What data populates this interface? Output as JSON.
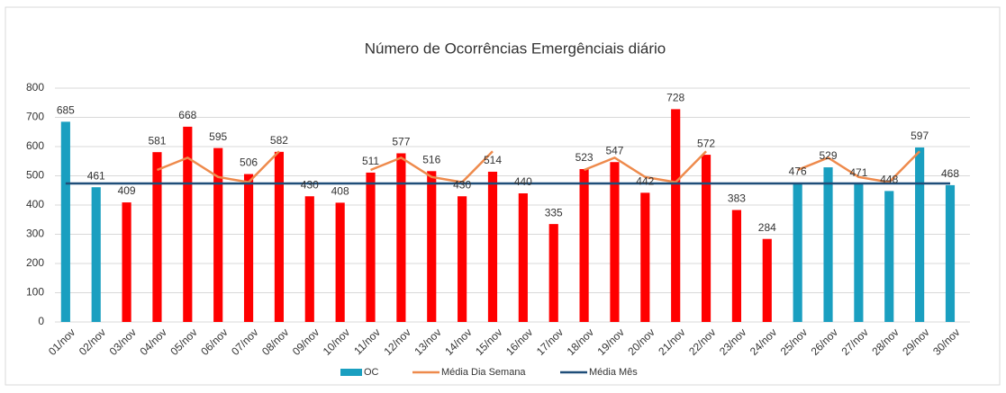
{
  "chart_data": {
    "type": "bar",
    "title": "Número de Ocorrências Emergênciais diário",
    "categories": [
      "01/nov",
      "02/nov",
      "03/nov",
      "04/nov",
      "05/nov",
      "06/nov",
      "07/nov",
      "08/nov",
      "09/nov",
      "10/nov",
      "11/nov",
      "12/nov",
      "13/nov",
      "14/nov",
      "15/nov",
      "16/nov",
      "17/nov",
      "18/nov",
      "19/nov",
      "20/nov",
      "21/nov",
      "22/nov",
      "23/nov",
      "24/nov",
      "25/nov",
      "26/nov",
      "27/nov",
      "28/nov",
      "29/nov",
      "30/nov"
    ],
    "series": [
      {
        "name": "OC",
        "type": "bar",
        "color": "#1a9fc0",
        "colors": [
          "#1a9fc0",
          "#1a9fc0",
          "#ff0000",
          "#ff0000",
          "#ff0000",
          "#ff0000",
          "#ff0000",
          "#ff0000",
          "#ff0000",
          "#ff0000",
          "#ff0000",
          "#ff0000",
          "#ff0000",
          "#ff0000",
          "#ff0000",
          "#ff0000",
          "#ff0000",
          "#ff0000",
          "#ff0000",
          "#ff0000",
          "#ff0000",
          "#ff0000",
          "#ff0000",
          "#ff0000",
          "#1a9fc0",
          "#1a9fc0",
          "#1a9fc0",
          "#1a9fc0",
          "#1a9fc0",
          "#1a9fc0"
        ],
        "values": [
          685,
          461,
          409,
          581,
          668,
          595,
          506,
          582,
          430,
          408,
          511,
          577,
          516,
          430,
          514,
          440,
          335,
          523,
          547,
          442,
          728,
          572,
          383,
          284,
          476,
          529,
          471,
          448,
          597,
          468
        ]
      },
      {
        "name": "Média Dia Semana",
        "type": "line",
        "color": "#ee8a4c",
        "values": [
          null,
          null,
          null,
          520,
          562,
          496,
          478,
          584,
          null,
          null,
          520,
          562,
          496,
          478,
          584,
          null,
          null,
          520,
          562,
          496,
          478,
          584,
          null,
          null,
          520,
          562,
          496,
          478,
          584,
          null
        ]
      },
      {
        "name": "Média Mês",
        "type": "line",
        "color": "#1f4e79",
        "values": [
          474,
          474,
          474,
          474,
          474,
          474,
          474,
          474,
          474,
          474,
          474,
          474,
          474,
          474,
          474,
          474,
          474,
          474,
          474,
          474,
          474,
          474,
          474,
          474,
          474,
          474,
          474,
          474,
          474,
          474
        ]
      }
    ],
    "ylim": [
      0,
      800
    ],
    "yticks": [
      0,
      100,
      200,
      300,
      400,
      500,
      600,
      700,
      800
    ],
    "grid": true
  }
}
